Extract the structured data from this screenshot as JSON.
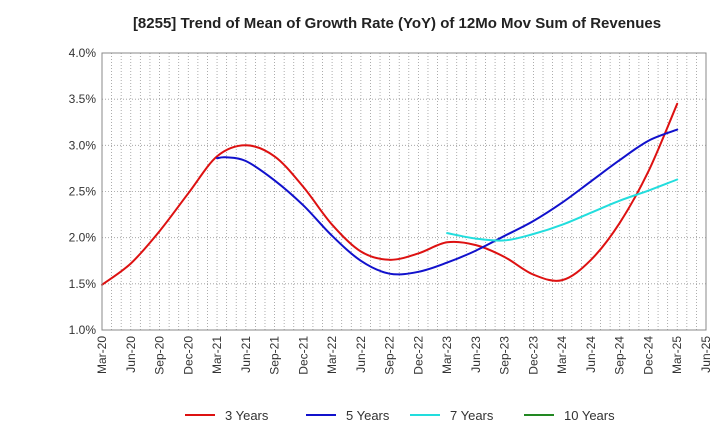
{
  "chart_data": {
    "type": "line",
    "title": "[8255]  Trend of Mean of Growth Rate (YoY) of 12Mo Mov Sum of Revenues",
    "xlabel": "",
    "ylabel": "",
    "ylim": [
      1.0,
      4.0
    ],
    "yticks": [
      "1.0%",
      "1.5%",
      "2.0%",
      "2.5%",
      "3.0%",
      "3.5%",
      "4.0%"
    ],
    "yvalues": [
      1.0,
      1.5,
      2.0,
      2.5,
      3.0,
      3.5,
      4.0
    ],
    "xticks": [
      "Mar-20",
      "Jun-20",
      "Sep-20",
      "Dec-20",
      "Mar-21",
      "Jun-21",
      "Sep-21",
      "Dec-21",
      "Mar-22",
      "Jun-22",
      "Sep-22",
      "Dec-22",
      "Mar-23",
      "Jun-23",
      "Sep-23",
      "Dec-23",
      "Mar-24",
      "Jun-24",
      "Sep-24",
      "Dec-24",
      "Mar-25",
      "Jun-25"
    ],
    "grid": true,
    "legend_position": "bottom",
    "series": [
      {
        "name": "3 Years",
        "color": "#dd1111",
        "x": [
          0,
          1,
          2,
          3,
          4,
          5,
          6,
          7,
          8,
          9,
          10,
          11,
          12,
          13,
          14,
          15,
          16,
          17,
          18,
          19,
          20
        ],
        "values": [
          1.49,
          1.72,
          2.07,
          2.48,
          2.88,
          3.0,
          2.88,
          2.55,
          2.14,
          1.85,
          1.76,
          1.83,
          1.95,
          1.92,
          1.79,
          1.6,
          1.54,
          1.76,
          2.16,
          2.72,
          3.45
        ]
      },
      {
        "name": "5 Years",
        "color": "#1111cc",
        "x": [
          4,
          4.3,
          5,
          6,
          7,
          8,
          9,
          10,
          11,
          12,
          13,
          14,
          15,
          16,
          17,
          18,
          19,
          20
        ],
        "values": [
          2.86,
          2.87,
          2.83,
          2.62,
          2.35,
          2.02,
          1.75,
          1.61,
          1.63,
          1.73,
          1.86,
          2.02,
          2.18,
          2.38,
          2.61,
          2.84,
          3.05,
          3.17
        ]
      },
      {
        "name": "7 Years",
        "color": "#22dddd",
        "x": [
          12,
          13,
          14,
          15,
          16,
          17,
          18,
          19,
          20
        ],
        "values": [
          2.05,
          1.99,
          1.97,
          2.04,
          2.14,
          2.27,
          2.4,
          2.51,
          2.63
        ]
      },
      {
        "name": "10 Years",
        "color": "#228822",
        "x": [],
        "values": []
      }
    ]
  }
}
